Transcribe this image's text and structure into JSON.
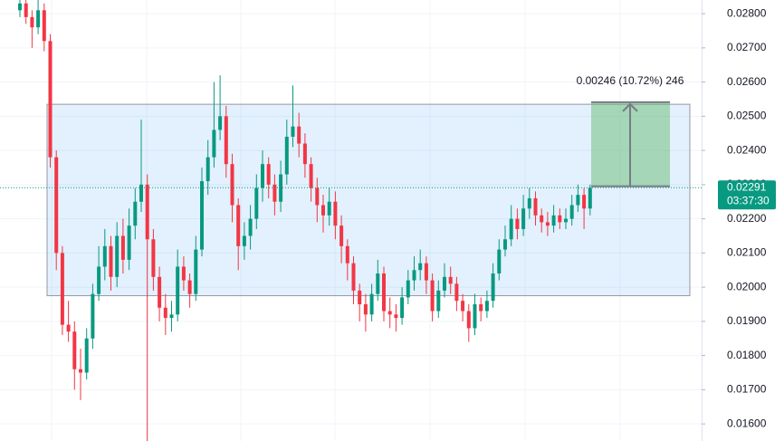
{
  "chart_data": {
    "type": "candlestick",
    "up_color": "#089981",
    "down_color": "#f23645",
    "ylim": [
      0.0155,
      0.0284
    ],
    "yticks": [
      {
        "value": 0.016,
        "label": "0.01600"
      },
      {
        "value": 0.017,
        "label": "0.01700"
      },
      {
        "value": 0.018,
        "label": "0.01800"
      },
      {
        "value": 0.019,
        "label": "0.01900"
      },
      {
        "value": 0.02,
        "label": "0.02000"
      },
      {
        "value": 0.021,
        "label": "0.02100"
      },
      {
        "value": 0.022,
        "label": "0.02200"
      },
      {
        "value": 0.023,
        "label": "0.02300"
      },
      {
        "value": 0.024,
        "label": "0.02400"
      },
      {
        "value": 0.025,
        "label": "0.02500"
      },
      {
        "value": 0.026,
        "label": "0.02600"
      },
      {
        "value": 0.027,
        "label": "0.02700"
      },
      {
        "value": 0.028,
        "label": "0.02800"
      }
    ],
    "candles": [
      [
        0.0281,
        0.0285,
        0.0279,
        0.0283
      ],
      [
        0.0283,
        0.0285,
        0.0277,
        0.0279
      ],
      [
        0.0279,
        0.0281,
        0.027,
        0.0276
      ],
      [
        0.0276,
        0.0285,
        0.0274,
        0.0281
      ],
      [
        0.0281,
        0.0283,
        0.0269,
        0.0272
      ],
      [
        0.0272,
        0.0274,
        0.0235,
        0.0238
      ],
      [
        0.0238,
        0.024,
        0.0205,
        0.021
      ],
      [
        0.021,
        0.0212,
        0.0186,
        0.0189
      ],
      [
        0.0189,
        0.0196,
        0.0184,
        0.0187
      ],
      [
        0.0187,
        0.019,
        0.017,
        0.0176
      ],
      [
        0.0176,
        0.0182,
        0.0167,
        0.0175
      ],
      [
        0.0175,
        0.0188,
        0.0173,
        0.0185
      ],
      [
        0.0185,
        0.0201,
        0.0182,
        0.0198
      ],
      [
        0.0198,
        0.0212,
        0.0196,
        0.0206
      ],
      [
        0.0206,
        0.0217,
        0.0202,
        0.0212
      ],
      [
        0.0212,
        0.0215,
        0.0199,
        0.0203
      ],
      [
        0.0203,
        0.0219,
        0.02,
        0.0215
      ],
      [
        0.0215,
        0.022,
        0.0204,
        0.0208
      ],
      [
        0.0208,
        0.0223,
        0.0205,
        0.0218
      ],
      [
        0.0218,
        0.0229,
        0.0214,
        0.0225
      ],
      [
        0.0225,
        0.0249,
        0.0222,
        0.023
      ],
      [
        0.023,
        0.0233,
        0.0155,
        0.0214
      ],
      [
        0.0214,
        0.0217,
        0.0199,
        0.0203
      ],
      [
        0.0203,
        0.0206,
        0.019,
        0.0194
      ],
      [
        0.0194,
        0.0198,
        0.0186,
        0.0191
      ],
      [
        0.0191,
        0.0196,
        0.0187,
        0.0192
      ],
      [
        0.0192,
        0.0211,
        0.019,
        0.0206
      ],
      [
        0.0206,
        0.0209,
        0.0199,
        0.0202
      ],
      [
        0.0202,
        0.0204,
        0.0194,
        0.0198
      ],
      [
        0.0198,
        0.0215,
        0.0196,
        0.0211
      ],
      [
        0.0211,
        0.0235,
        0.0209,
        0.0231
      ],
      [
        0.0231,
        0.0243,
        0.0227,
        0.0238
      ],
      [
        0.0238,
        0.026,
        0.0235,
        0.0246
      ],
      [
        0.0246,
        0.0262,
        0.0243,
        0.025
      ],
      [
        0.025,
        0.0253,
        0.0232,
        0.0236
      ],
      [
        0.0236,
        0.0239,
        0.0219,
        0.0224
      ],
      [
        0.0224,
        0.0226,
        0.0205,
        0.0212
      ],
      [
        0.0212,
        0.0219,
        0.0208,
        0.0215
      ],
      [
        0.0215,
        0.0224,
        0.0211,
        0.022
      ],
      [
        0.022,
        0.0233,
        0.0217,
        0.0229
      ],
      [
        0.0229,
        0.024,
        0.0225,
        0.0236
      ],
      [
        0.0236,
        0.0238,
        0.0226,
        0.023
      ],
      [
        0.023,
        0.0233,
        0.0221,
        0.0225
      ],
      [
        0.0225,
        0.0237,
        0.0222,
        0.0233
      ],
      [
        0.0233,
        0.0249,
        0.023,
        0.0244
      ],
      [
        0.0244,
        0.0259,
        0.0241,
        0.0247
      ],
      [
        0.0247,
        0.0251,
        0.0238,
        0.0242
      ],
      [
        0.0242,
        0.0245,
        0.0232,
        0.0236
      ],
      [
        0.0236,
        0.0238,
        0.0225,
        0.0229
      ],
      [
        0.0229,
        0.0232,
        0.0219,
        0.0224
      ],
      [
        0.0224,
        0.0227,
        0.0216,
        0.0221
      ],
      [
        0.0221,
        0.0229,
        0.0218,
        0.0225
      ],
      [
        0.0225,
        0.0228,
        0.0214,
        0.0218
      ],
      [
        0.0218,
        0.0221,
        0.0207,
        0.0212
      ],
      [
        0.0212,
        0.0214,
        0.0202,
        0.0207
      ],
      [
        0.0207,
        0.0209,
        0.0195,
        0.0199
      ],
      [
        0.0199,
        0.0201,
        0.019,
        0.0195
      ],
      [
        0.0195,
        0.0198,
        0.0187,
        0.0192
      ],
      [
        0.0192,
        0.0201,
        0.019,
        0.0198
      ],
      [
        0.0198,
        0.0208,
        0.0196,
        0.0204
      ],
      [
        0.0204,
        0.0206,
        0.019,
        0.0193
      ],
      [
        0.0193,
        0.0197,
        0.0188,
        0.0192
      ],
      [
        0.0192,
        0.0195,
        0.0187,
        0.0191
      ],
      [
        0.0191,
        0.02,
        0.0189,
        0.0197
      ],
      [
        0.0197,
        0.0205,
        0.0195,
        0.0202
      ],
      [
        0.0202,
        0.0209,
        0.0199,
        0.0205
      ],
      [
        0.0205,
        0.0211,
        0.0202,
        0.0207
      ],
      [
        0.0207,
        0.0209,
        0.0198,
        0.0202
      ],
      [
        0.0202,
        0.0204,
        0.019,
        0.0193
      ],
      [
        0.0193,
        0.0202,
        0.0191,
        0.0199
      ],
      [
        0.0199,
        0.0207,
        0.0197,
        0.0203
      ],
      [
        0.0203,
        0.0206,
        0.0198,
        0.0201
      ],
      [
        0.0201,
        0.0203,
        0.0193,
        0.0196
      ],
      [
        0.0196,
        0.0198,
        0.019,
        0.0193
      ],
      [
        0.0193,
        0.0195,
        0.0184,
        0.0188
      ],
      [
        0.0188,
        0.0198,
        0.0186,
        0.0195
      ],
      [
        0.0195,
        0.0197,
        0.019,
        0.0193
      ],
      [
        0.0193,
        0.0199,
        0.0191,
        0.0196
      ],
      [
        0.0196,
        0.0207,
        0.0194,
        0.0204
      ],
      [
        0.0204,
        0.0214,
        0.0202,
        0.0211
      ],
      [
        0.0211,
        0.0218,
        0.0209,
        0.0214
      ],
      [
        0.0214,
        0.0224,
        0.0212,
        0.022
      ],
      [
        0.022,
        0.0223,
        0.0214,
        0.0217
      ],
      [
        0.0217,
        0.0227,
        0.0215,
        0.0223
      ],
      [
        0.0223,
        0.0229,
        0.022,
        0.0226
      ],
      [
        0.0226,
        0.0228,
        0.0218,
        0.0221
      ],
      [
        0.0221,
        0.0223,
        0.0216,
        0.0219
      ],
      [
        0.0219,
        0.0222,
        0.0215,
        0.0218
      ],
      [
        0.0218,
        0.0224,
        0.0216,
        0.0221
      ],
      [
        0.0221,
        0.0223,
        0.0217,
        0.0219
      ],
      [
        0.0219,
        0.0223,
        0.0217,
        0.022
      ],
      [
        0.022,
        0.0227,
        0.0218,
        0.0224
      ],
      [
        0.0224,
        0.023,
        0.0222,
        0.0227
      ],
      [
        0.0227,
        0.0229,
        0.0217,
        0.0223
      ],
      [
        0.0223,
        0.023,
        0.0221,
        0.02291
      ]
    ],
    "range_box": {
      "top": 0.02535,
      "bottom": 0.01975
    },
    "measure": {
      "from": 0.02295,
      "to": 0.02541,
      "label": "0.00246 (10.72%) 246"
    },
    "last_price": {
      "value": 0.02291,
      "value_label": "0.02291",
      "countdown": "03:37:30"
    }
  }
}
